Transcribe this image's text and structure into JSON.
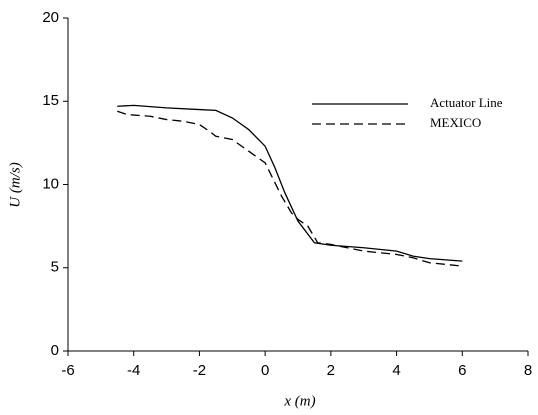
{
  "chart_data": {
    "type": "line",
    "x_label": "x (m)",
    "y_label": "U (m/s)",
    "xlim": [
      -6,
      8
    ],
    "xticks": [
      -6,
      -4,
      -2,
      0,
      2,
      4,
      6,
      8
    ],
    "ylim": [
      0,
      20
    ],
    "yticks": [
      0,
      5,
      10,
      15,
      20
    ],
    "legend": "upper right",
    "series": [
      {
        "name": "Actuator Line",
        "color": "#000000",
        "dash": "solid",
        "x": [
          -4.5,
          -4,
          -3,
          -2,
          -1.5,
          -1,
          -0.5,
          0,
          0.3,
          0.6,
          1.0,
          1.5,
          2,
          3,
          4,
          4.5,
          5,
          6
        ],
        "values": [
          14.7,
          14.75,
          14.6,
          14.5,
          14.45,
          14.0,
          13.3,
          12.3,
          11.0,
          9.5,
          7.8,
          6.5,
          6.35,
          6.2,
          6.0,
          5.7,
          5.55,
          5.4
        ]
      },
      {
        "name": "MEXICO",
        "color": "#000000",
        "dash": "dashed",
        "x": [
          -4.5,
          -4.2,
          -3.5,
          -3,
          -2.5,
          -2,
          -1.7,
          -1.5,
          -1,
          -0.5,
          0,
          0.2,
          0.5,
          0.8,
          1.0,
          1.3,
          1.6,
          2,
          3,
          4,
          4.5,
          5,
          6
        ],
        "values": [
          14.4,
          14.2,
          14.1,
          13.9,
          13.8,
          13.6,
          13.2,
          12.9,
          12.7,
          12.0,
          11.3,
          10.5,
          9.3,
          8.3,
          7.9,
          7.5,
          6.5,
          6.4,
          6.0,
          5.8,
          5.6,
          5.3,
          5.1
        ]
      }
    ]
  }
}
